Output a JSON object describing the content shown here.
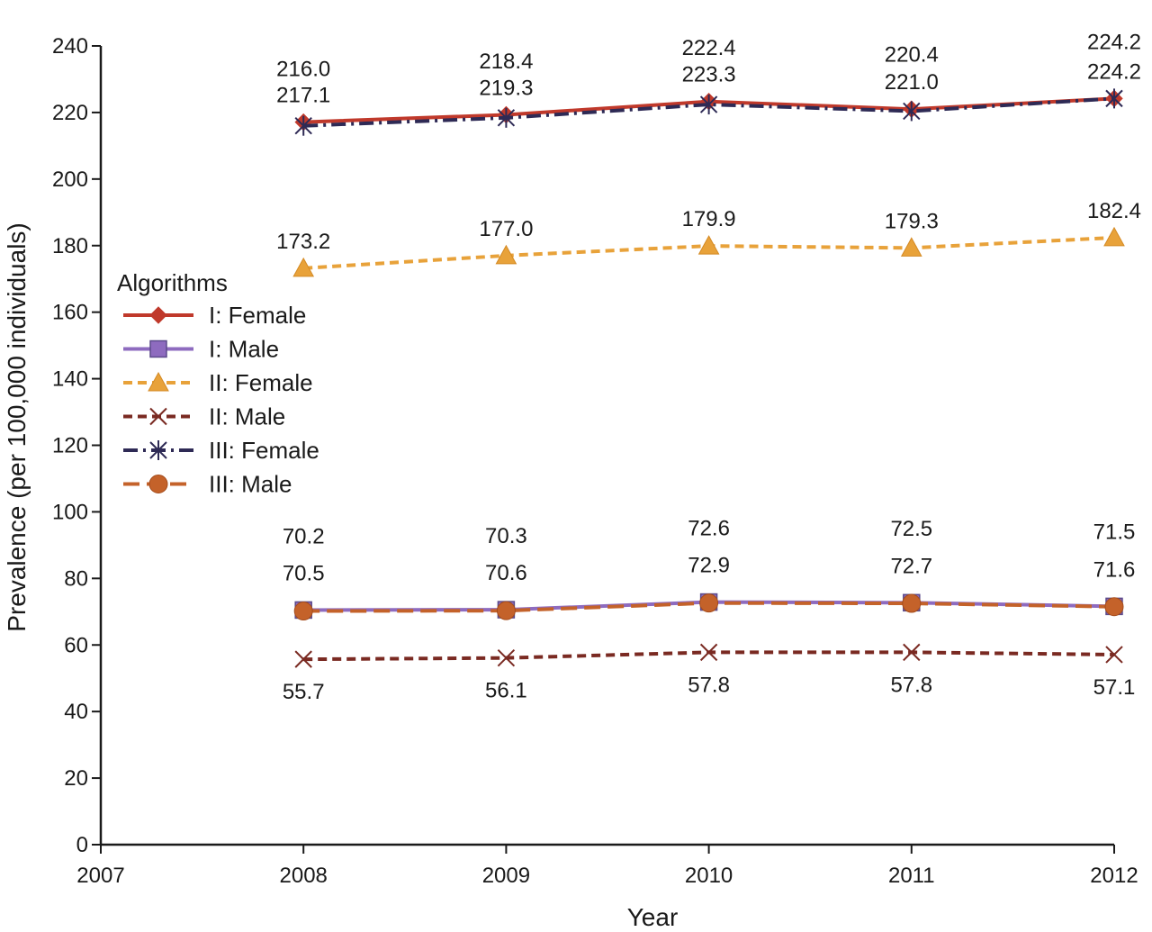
{
  "chart_data": {
    "type": "line",
    "xlabel": "Year",
    "ylabel": "Prevalence (per 100,000 individuals)",
    "xlim": [
      2007,
      2012
    ],
    "ylim": [
      0,
      240
    ],
    "x_ticks": [
      "2007",
      "2008",
      "2009",
      "2010",
      "2011",
      "2012"
    ],
    "y_ticks": [
      "0",
      "20",
      "40",
      "60",
      "80",
      "100",
      "120",
      "140",
      "160",
      "180",
      "200",
      "220",
      "240"
    ],
    "x": [
      2008,
      2009,
      2010,
      2011,
      2012
    ],
    "grid": false,
    "legend_title": "Algorithms",
    "legend_position": "left",
    "series": [
      {
        "name": "I: Female",
        "values": [
          217.1,
          219.3,
          223.3,
          221.0,
          224.2
        ],
        "color": "#c0392b",
        "marker": "diamond",
        "dash": "solid"
      },
      {
        "name": "I: Male",
        "values": [
          70.5,
          70.6,
          72.9,
          72.7,
          71.6
        ],
        "color": "#8e6bbf",
        "marker": "square",
        "dash": "solid"
      },
      {
        "name": "II: Female",
        "values": [
          173.2,
          177.0,
          179.9,
          179.3,
          182.4
        ],
        "color": "#e8a23a",
        "marker": "triangle",
        "dash": "dashed"
      },
      {
        "name": "II: Male",
        "values": [
          55.7,
          56.1,
          57.8,
          57.8,
          57.1
        ],
        "color": "#7a2a22",
        "marker": "x",
        "dash": "dashed"
      },
      {
        "name": "III: Female",
        "values": [
          216.0,
          218.4,
          222.4,
          220.4,
          224.2
        ],
        "color": "#2e2a55",
        "marker": "asterisk",
        "dash": "dashdot"
      },
      {
        "name": "III: Male",
        "values": [
          70.2,
          70.3,
          72.6,
          72.5,
          71.5
        ],
        "color": "#c4622a",
        "marker": "circle",
        "dash": "longdash"
      }
    ],
    "annotations": [
      {
        "x": 2008,
        "texts": [
          "216.0",
          "217.1",
          "173.2",
          "70.2",
          "70.5",
          "55.7"
        ]
      },
      {
        "x": 2009,
        "texts": [
          "218.4",
          "219.3",
          "177.0",
          "70.3",
          "70.6",
          "56.1"
        ]
      },
      {
        "x": 2010,
        "texts": [
          "222.4",
          "223.3",
          "179.9",
          "72.6",
          "72.9",
          "57.8"
        ]
      },
      {
        "x": 2011,
        "texts": [
          "220.4",
          "221.0",
          "179.3",
          "72.5",
          "72.7",
          "57.8"
        ]
      },
      {
        "x": 2012,
        "texts": [
          "224.2",
          "224.2",
          "182.4",
          "71.5",
          "71.6",
          "57.1"
        ]
      }
    ]
  }
}
